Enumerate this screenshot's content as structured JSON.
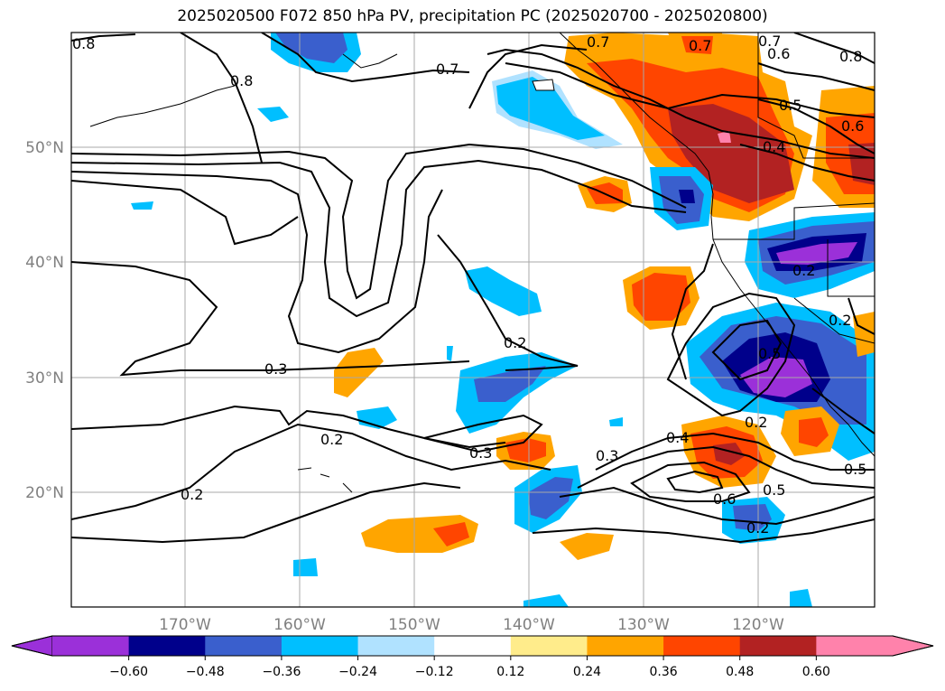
{
  "title": "2025020500 F072 850 hPa PV, precipitation PC (2025020700 - 2025020800)",
  "lat_labels": [
    "50°N",
    "40°N",
    "30°N",
    "20°N"
  ],
  "lon_labels": [
    "170°W",
    "160°W",
    "150°W",
    "140°W",
    "130°W",
    "120°W"
  ],
  "contour_labels": [
    "0.8",
    "0.8",
    "0.7",
    "0.7",
    "0.7",
    "0.7",
    "0.6",
    "0.8",
    "0.5",
    "0.4",
    "0.6",
    "0.2",
    "0.2",
    "0.3",
    "0.2",
    "0.2",
    "0.3",
    "0.3",
    "0.4",
    "0.5",
    "0.6",
    "0.5",
    "0.2",
    "0.5",
    "0.2",
    "0.2"
  ],
  "colorbar": {
    "tick_labels": [
      "−0.60",
      "−0.48",
      "−0.36",
      "−0.24",
      "−0.12",
      "0.12",
      "0.24",
      "0.36",
      "0.48",
      "0.60"
    ],
    "colors": [
      "#9b30d9",
      "#00008b",
      "#3a5fcd",
      "#00bfff",
      "#b0e2ff",
      "#ffffff",
      "#ffec8b",
      "#ffa500",
      "#ff4500",
      "#b22222",
      "#ff82ab"
    ]
  }
}
